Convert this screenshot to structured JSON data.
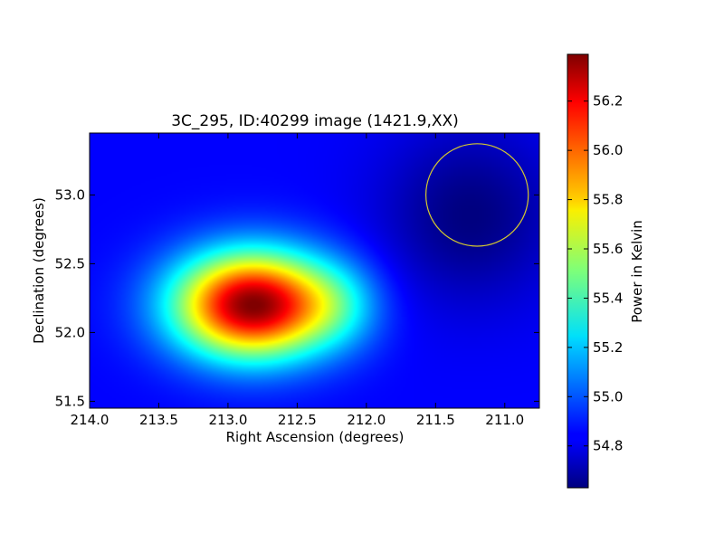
{
  "chart_data": {
    "type": "heatmap",
    "title": "3C_295, ID:40299 image (1421.9,XX)",
    "xlabel": "Right Ascension (degrees)",
    "ylabel": "Declination (degrees)",
    "colorbar_label": "Power in Kelvin",
    "colormap": "jet",
    "xlim": [
      214.0,
      210.75
    ],
    "ylim": [
      51.45,
      53.45
    ],
    "x_ticks": [
      214.0,
      213.5,
      213.0,
      212.5,
      212.0,
      211.5,
      211.0
    ],
    "x_tick_labels": [
      "214.0",
      "213.5",
      "213.0",
      "212.5",
      "212.0",
      "211.5",
      "211.0"
    ],
    "y_ticks": [
      51.5,
      52.0,
      52.5,
      53.0
    ],
    "y_tick_labels": [
      "51.5",
      "52.0",
      "52.5",
      "53.0"
    ],
    "value_range": [
      54.63,
      56.39
    ],
    "colorbar_ticks": [
      54.8,
      55.0,
      55.2,
      55.4,
      55.6,
      55.8,
      56.0,
      56.2
    ],
    "colorbar_tick_labels": [
      "54.8",
      "55.0",
      "55.2",
      "55.4",
      "55.6",
      "55.8",
      "56.0",
      "56.2"
    ],
    "features": {
      "peak": {
        "ra": 212.82,
        "dec": 52.2,
        "value": 56.39
      },
      "background_value": 54.85,
      "minimum": {
        "ra": 211.25,
        "dec": 52.85,
        "value": 54.63
      }
    },
    "circle": {
      "ra": 211.2,
      "dec": 53.0,
      "radius_deg": 0.37,
      "color": "#d4c830"
    },
    "grid": false
  }
}
